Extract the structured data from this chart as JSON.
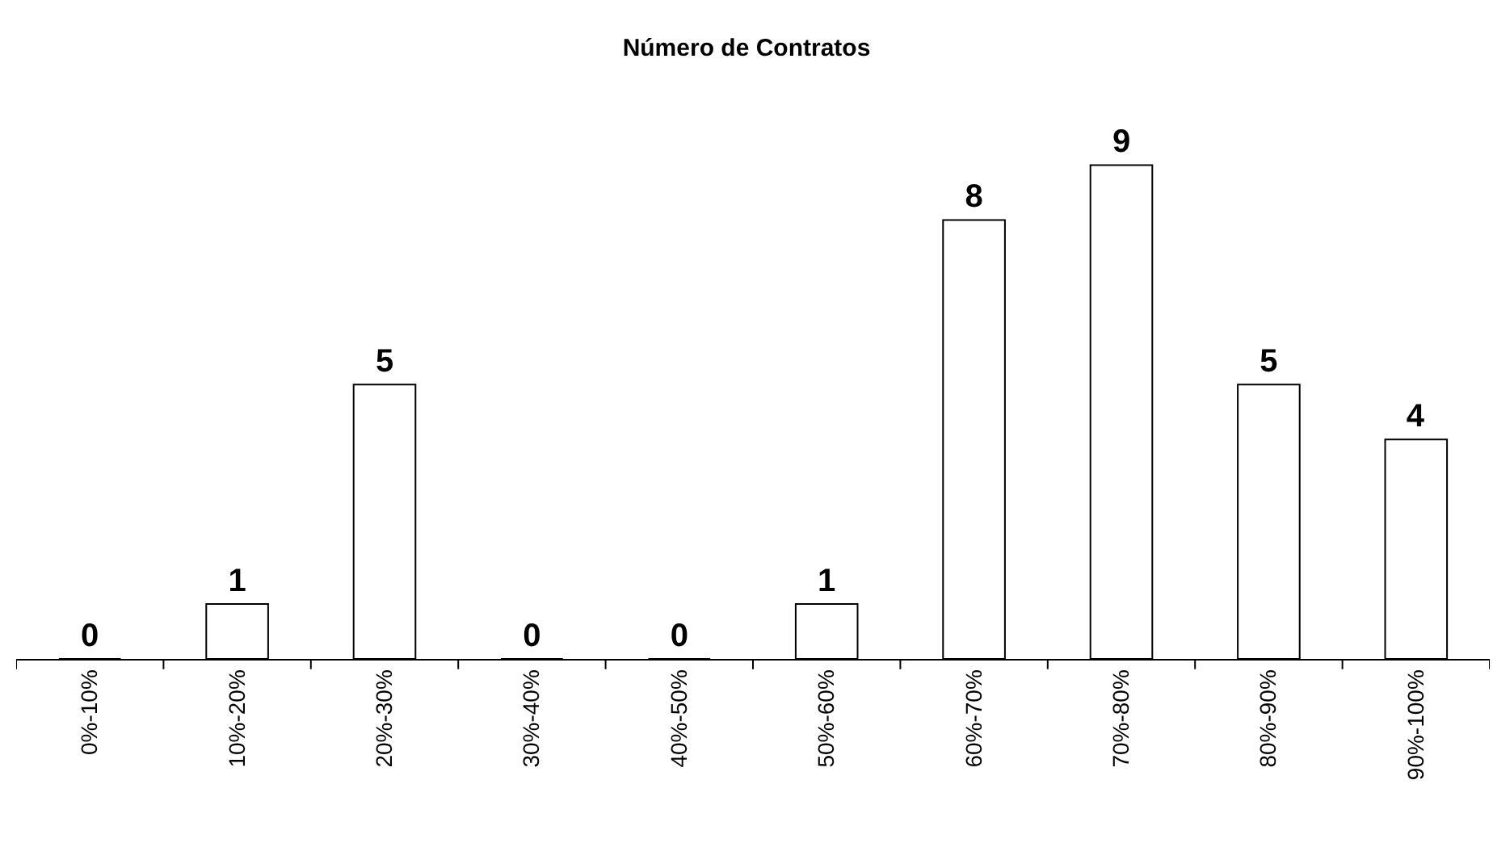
{
  "chart_data": {
    "type": "bar",
    "title": "Número de Contratos",
    "categories": [
      "0%-10%",
      "10%-20%",
      "20%-30%",
      "30%-40%",
      "40%-50%",
      "50%-60%",
      "60%-70%",
      "70%-80%",
      "80%-90%",
      "90%-100%"
    ],
    "values": [
      0,
      1,
      5,
      0,
      0,
      1,
      8,
      9,
      5,
      4
    ],
    "color": "#ffffff",
    "data_labels": true
  }
}
